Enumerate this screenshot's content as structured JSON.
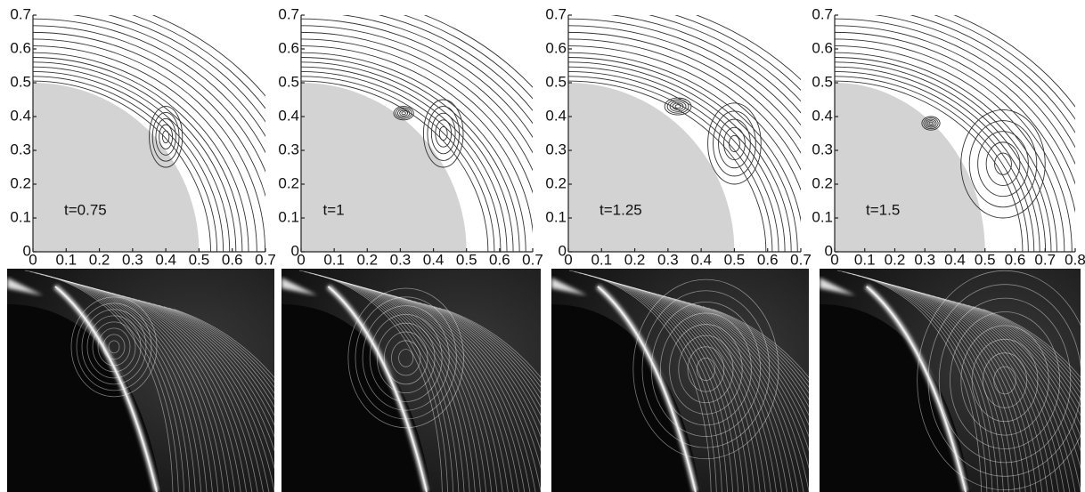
{
  "panels": [
    {
      "label": "t=0.75",
      "xticks": [
        0,
        0.1,
        0.2,
        0.3,
        0.4,
        0.5,
        0.6,
        0.7
      ],
      "yticks": [
        0,
        0.1,
        0.2,
        0.3,
        0.4,
        0.5,
        0.6,
        0.7
      ]
    },
    {
      "label": "t=1",
      "xticks": [
        0,
        0.1,
        0.2,
        0.3,
        0.4,
        0.5,
        0.6,
        0.7
      ],
      "yticks": [
        0,
        0.1,
        0.2,
        0.3,
        0.4,
        0.5,
        0.6,
        0.7
      ]
    },
    {
      "label": "t=1.25",
      "xticks": [
        0,
        0.1,
        0.2,
        0.3,
        0.4,
        0.5,
        0.6,
        0.7
      ],
      "yticks": [
        0,
        0.1,
        0.2,
        0.3,
        0.4,
        0.5,
        0.6,
        0.7
      ]
    },
    {
      "label": "t=1.5",
      "xticks": [
        0,
        0.1,
        0.2,
        0.3,
        0.4,
        0.5,
        0.6,
        0.7,
        0.8
      ],
      "yticks": [
        0,
        0.1,
        0.2,
        0.3,
        0.4,
        0.5,
        0.6,
        0.7
      ]
    }
  ]
}
